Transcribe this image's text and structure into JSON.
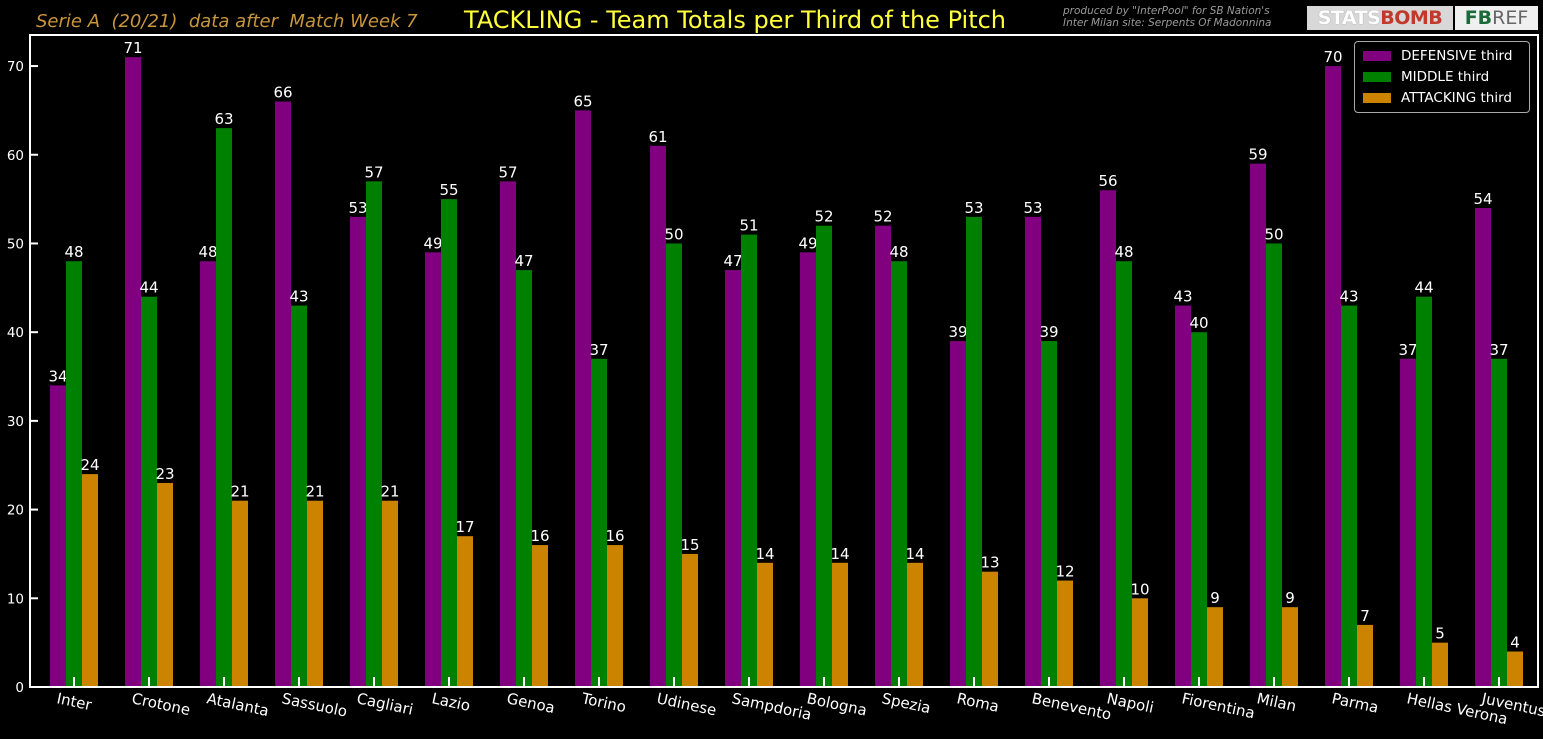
{
  "header": {
    "subtitle": "Serie A  (20/21)  data after  Match Week 7",
    "title": "TACKLING - Team Totals per Third of the Pitch",
    "credit_line1": "produced by \"InterPool\" for SB Nation's",
    "credit_line2": "Inter Milan site: Serpents Of Madonnina",
    "logo_statsbomb_part1": "STATS",
    "logo_statsbomb_part2": "BOMB",
    "logo_fbref_part1": "FB",
    "logo_fbref_part2": "REF"
  },
  "colors": {
    "defensive": "#800080",
    "middle": "#008000",
    "attacking": "#cc8400",
    "background": "#000000",
    "axis": "#ffffff",
    "title": "#ffff3c",
    "subtitle": "#c8963c"
  },
  "chart_data": {
    "type": "bar",
    "title": "TACKLING - Team Totals per Third of the Pitch",
    "xlabel": "",
    "ylabel": "",
    "ylim": [
      0,
      73.5
    ],
    "yticks": [
      0,
      10,
      20,
      30,
      40,
      50,
      60,
      70
    ],
    "grid": false,
    "legend_position": "top-right",
    "categories": [
      "Inter",
      "Crotone",
      "Atalanta",
      "Sassuolo",
      "Cagliari",
      "Lazio",
      "Genoa",
      "Torino",
      "Udinese",
      "Sampdoria",
      "Bologna",
      "Spezia",
      "Roma",
      "Benevento",
      "Napoli",
      "Fiorentina",
      "Milan",
      "Parma",
      "Hellas Verona",
      "Juventus"
    ],
    "series": [
      {
        "name": "DEFENSIVE third",
        "color": "#800080",
        "values": [
          34,
          71,
          48,
          66,
          53,
          49,
          57,
          65,
          61,
          47,
          49,
          52,
          39,
          53,
          56,
          43,
          59,
          70,
          37,
          54
        ]
      },
      {
        "name": "MIDDLE third",
        "color": "#008000",
        "values": [
          48,
          44,
          63,
          43,
          57,
          55,
          47,
          37,
          50,
          51,
          52,
          48,
          53,
          39,
          48,
          40,
          50,
          43,
          44,
          37
        ]
      },
      {
        "name": "ATTACKING third",
        "color": "#cc8400",
        "values": [
          24,
          23,
          21,
          21,
          21,
          17,
          16,
          16,
          15,
          14,
          14,
          14,
          13,
          12,
          10,
          9,
          9,
          7,
          5,
          4
        ]
      }
    ]
  }
}
